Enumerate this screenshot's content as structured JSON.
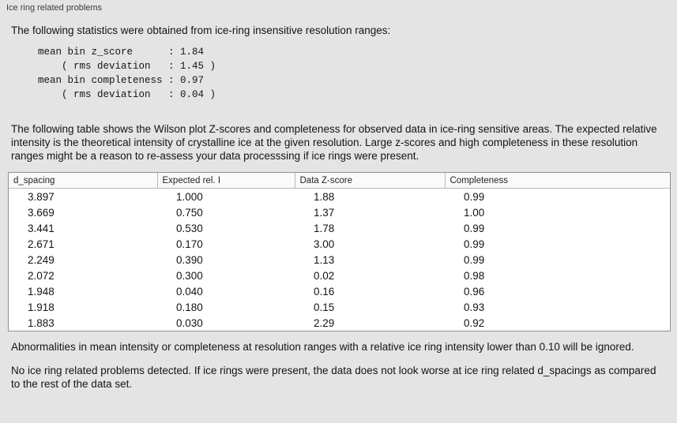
{
  "panel": {
    "title": "Ice ring related problems"
  },
  "intro": "The following statistics were obtained from ice-ring insensitive resolution ranges:",
  "stats_lines": [
    "mean bin z_score      : 1.84",
    "    ( rms deviation   : 1.45 )",
    "mean bin completeness : 0.97",
    "    ( rms deviation   : 0.04 )"
  ],
  "table_intro": "The following table shows the Wilson plot Z-scores and completeness for observed data in ice-ring sensitive areas. The expected relative intensity is the theoretical intensity of crystalline ice at the given resolution. Large z-scores and high completeness in these resolution ranges might be a reason to re-assess your data processsing if ice rings were present.",
  "table": {
    "headers": [
      "d_spacing",
      "Expected rel. I",
      "Data Z-score",
      "Completeness"
    ],
    "rows": [
      [
        "3.897",
        "1.000",
        "1.88",
        "0.99"
      ],
      [
        "3.669",
        "0.750",
        "1.37",
        "1.00"
      ],
      [
        "3.441",
        "0.530",
        "1.78",
        "0.99"
      ],
      [
        "2.671",
        "0.170",
        "3.00",
        "0.99"
      ],
      [
        "2.249",
        "0.390",
        "1.13",
        "0.99"
      ],
      [
        "2.072",
        "0.300",
        "0.02",
        "0.98"
      ],
      [
        "1.948",
        "0.040",
        "0.16",
        "0.96"
      ],
      [
        "1.918",
        "0.180",
        "0.15",
        "0.93"
      ],
      [
        "1.883",
        "0.030",
        "2.29",
        "0.92"
      ]
    ]
  },
  "note_ignore": "Abnormalities in mean intensity or completeness at resolution ranges with a relative ice ring intensity lower than 0.10 will be ignored.",
  "conclusion": "No ice ring related problems detected. If ice rings were present, the data does not look worse at ice ring related d_spacings as compared to the rest of the data set.",
  "colors": {
    "background": "#e4e4e4",
    "table_background": "#ffffff",
    "table_border": "#919191"
  }
}
